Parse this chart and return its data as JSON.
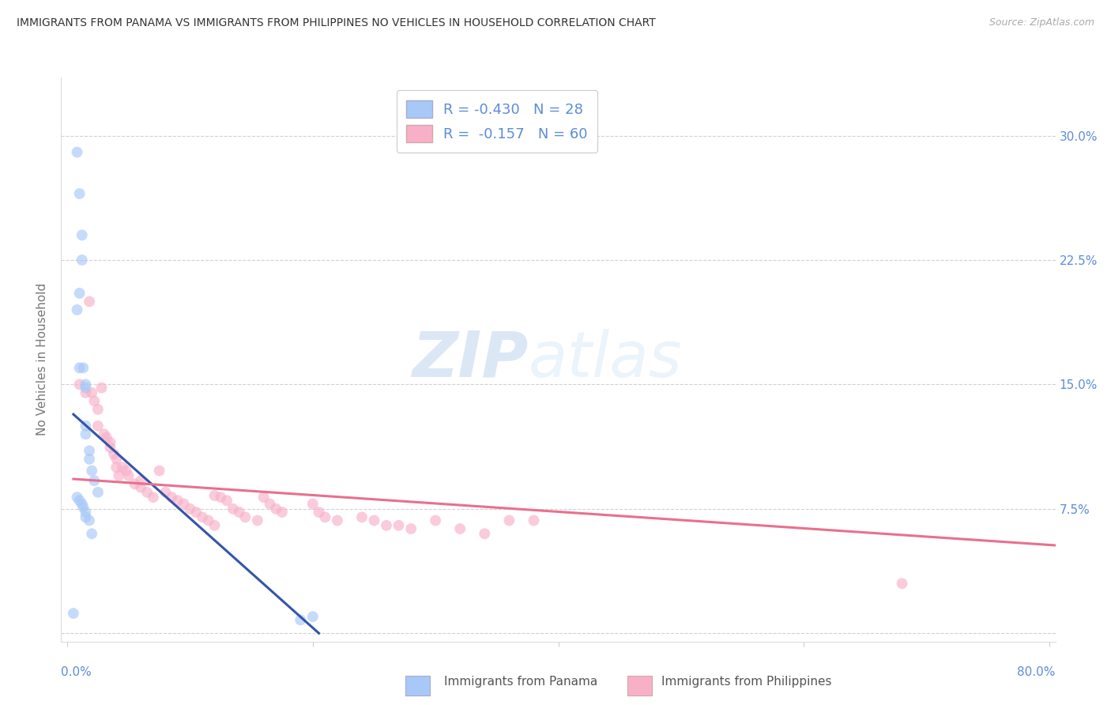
{
  "title": "IMMIGRANTS FROM PANAMA VS IMMIGRANTS FROM PHILIPPINES NO VEHICLES IN HOUSEHOLD CORRELATION CHART",
  "source": "Source: ZipAtlas.com",
  "ylabel": "No Vehicles in Household",
  "ytick_values": [
    0.0,
    0.075,
    0.15,
    0.225,
    0.3
  ],
  "xlim": [
    -0.005,
    0.805
  ],
  "ylim": [
    -0.005,
    0.335
  ],
  "panama_color": "#a8c8f8",
  "philippines_color": "#f8b0c8",
  "panama_line_color": "#3355aa",
  "philippines_line_color": "#e87090",
  "watermark_zip": "ZIP",
  "watermark_atlas": "atlas",
  "legend_text1": "R = -0.430   N = 28",
  "legend_text2": "R =  -0.157   N = 60",
  "panama_x": [
    0.008,
    0.01,
    0.012,
    0.012,
    0.01,
    0.008,
    0.01,
    0.013,
    0.015,
    0.015,
    0.015,
    0.015,
    0.018,
    0.018,
    0.02,
    0.022,
    0.025,
    0.008,
    0.01,
    0.012,
    0.013,
    0.015,
    0.015,
    0.018,
    0.02,
    0.19,
    0.2,
    0.005
  ],
  "panama_y": [
    0.29,
    0.265,
    0.24,
    0.225,
    0.205,
    0.195,
    0.16,
    0.16,
    0.15,
    0.148,
    0.125,
    0.12,
    0.11,
    0.105,
    0.098,
    0.092,
    0.085,
    0.082,
    0.08,
    0.078,
    0.076,
    0.073,
    0.07,
    0.068,
    0.06,
    0.008,
    0.01,
    0.012
  ],
  "philippines_x": [
    0.01,
    0.015,
    0.018,
    0.02,
    0.022,
    0.025,
    0.025,
    0.028,
    0.03,
    0.032,
    0.035,
    0.035,
    0.038,
    0.04,
    0.04,
    0.042,
    0.045,
    0.048,
    0.05,
    0.055,
    0.06,
    0.06,
    0.065,
    0.07,
    0.075,
    0.08,
    0.085,
    0.09,
    0.095,
    0.1,
    0.105,
    0.11,
    0.115,
    0.12,
    0.12,
    0.125,
    0.13,
    0.135,
    0.14,
    0.145,
    0.155,
    0.16,
    0.165,
    0.17,
    0.175,
    0.2,
    0.205,
    0.21,
    0.22,
    0.24,
    0.25,
    0.26,
    0.27,
    0.28,
    0.3,
    0.32,
    0.34,
    0.36,
    0.38,
    0.68
  ],
  "philippines_y": [
    0.15,
    0.145,
    0.2,
    0.145,
    0.14,
    0.135,
    0.125,
    0.148,
    0.12,
    0.118,
    0.115,
    0.112,
    0.108,
    0.105,
    0.1,
    0.095,
    0.1,
    0.098,
    0.095,
    0.09,
    0.088,
    0.092,
    0.085,
    0.082,
    0.098,
    0.085,
    0.082,
    0.08,
    0.078,
    0.075,
    0.073,
    0.07,
    0.068,
    0.083,
    0.065,
    0.082,
    0.08,
    0.075,
    0.073,
    0.07,
    0.068,
    0.082,
    0.078,
    0.075,
    0.073,
    0.078,
    0.073,
    0.07,
    0.068,
    0.07,
    0.068,
    0.065,
    0.065,
    0.063,
    0.068,
    0.063,
    0.06,
    0.068,
    0.068,
    0.03
  ],
  "panama_trend_x": [
    0.005,
    0.205
  ],
  "panama_trend_y": [
    0.132,
    0.0
  ],
  "philippines_trend_x": [
    0.005,
    0.805
  ],
  "philippines_trend_y": [
    0.093,
    0.053
  ],
  "background_color": "#ffffff",
  "grid_color": "#cccccc",
  "title_color": "#333333",
  "tick_color": "#5b8dd9",
  "marker_size": 100,
  "marker_alpha": 0.65
}
